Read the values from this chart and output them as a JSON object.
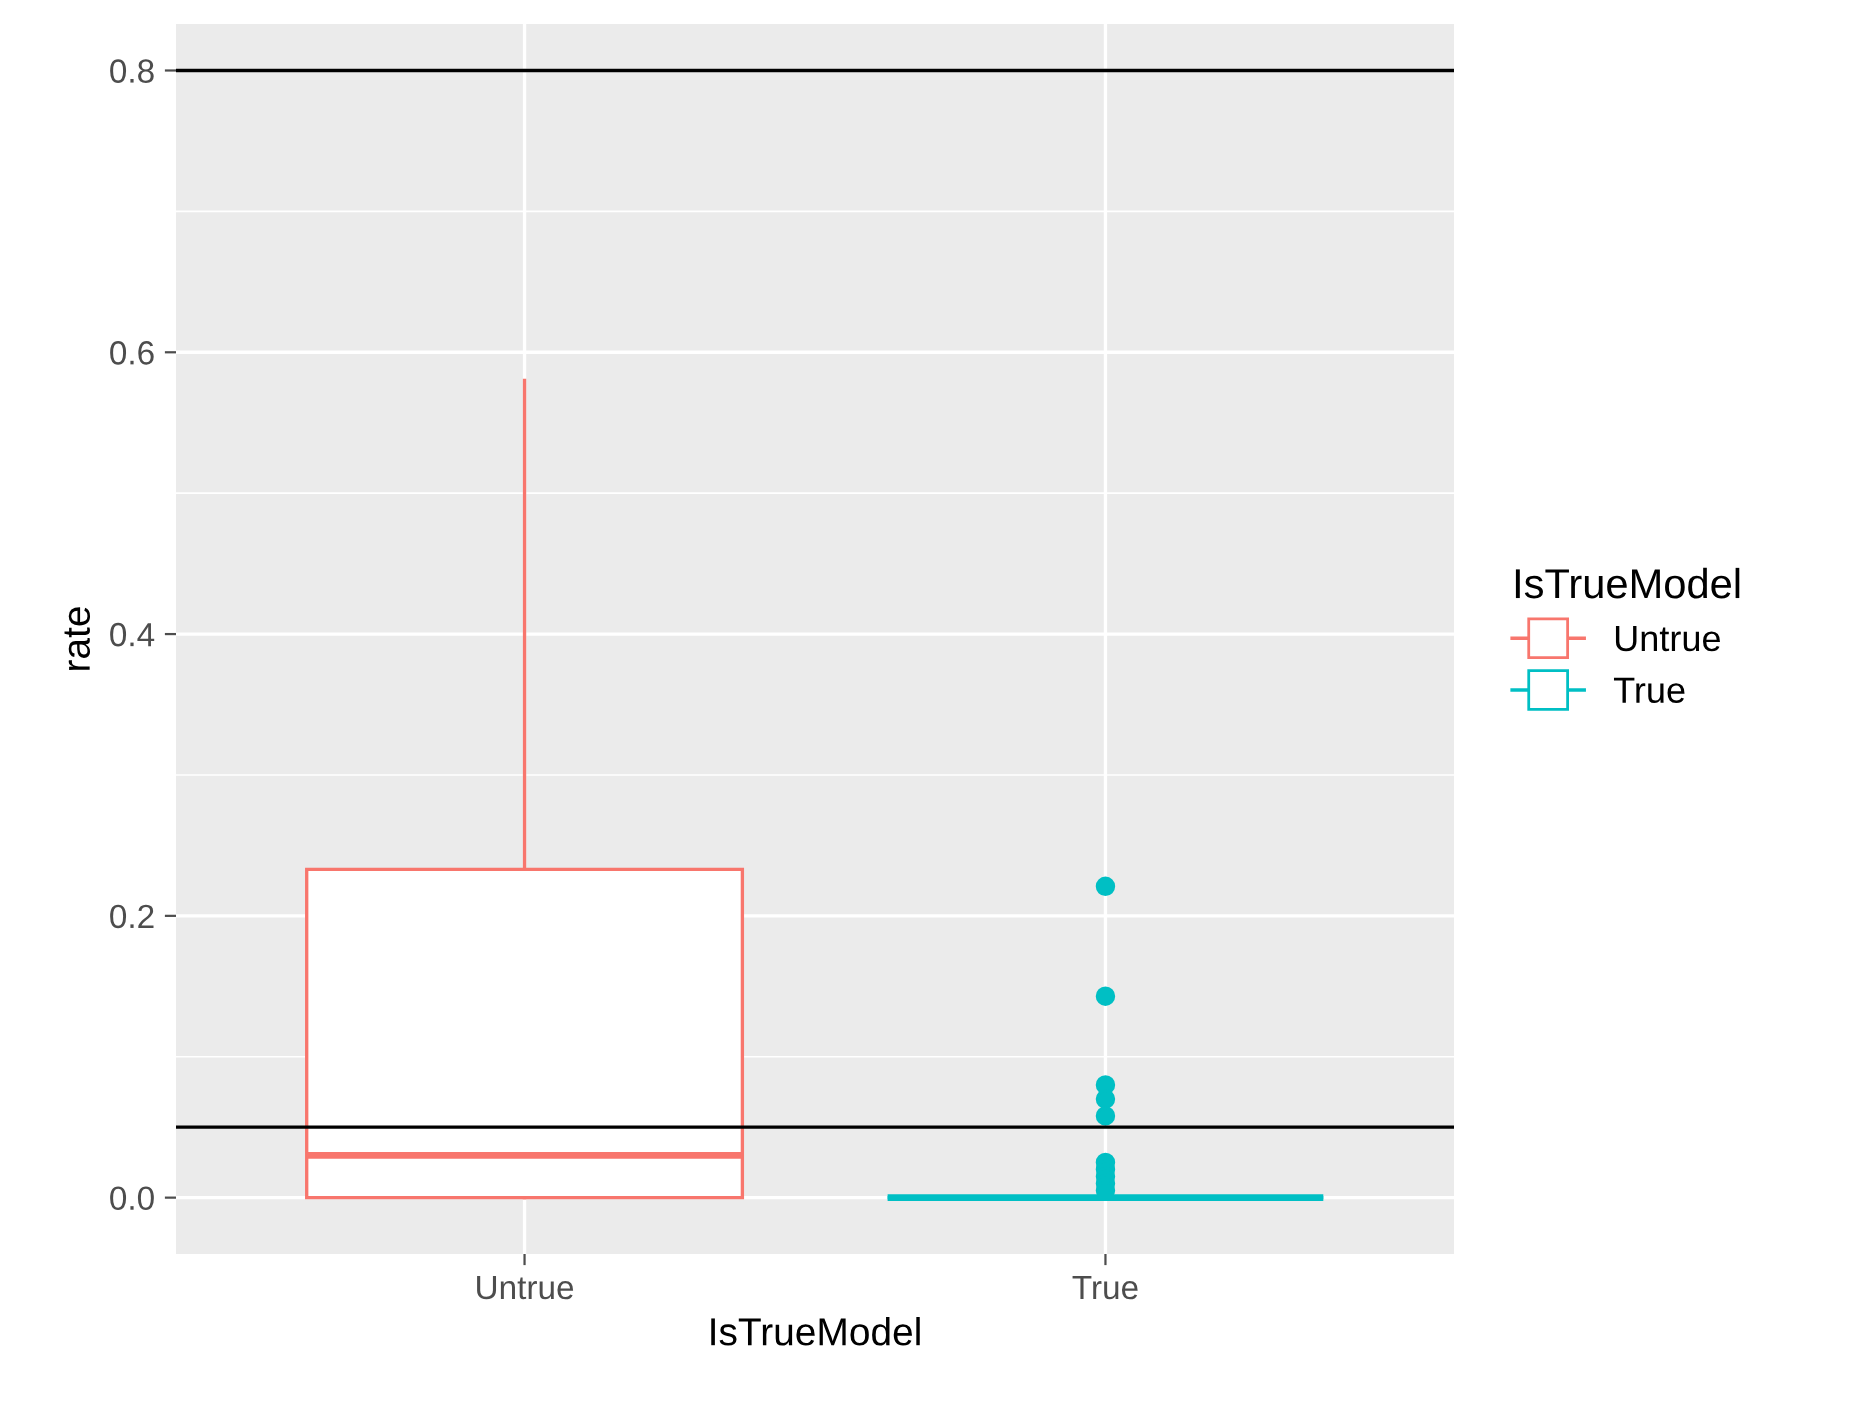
{
  "chart_data": {
    "type": "box",
    "xlabel": "IsTrueModel",
    "ylabel": "rate",
    "legend_title": "IsTrueModel",
    "categories": [
      "Untrue",
      "True"
    ],
    "series": [
      {
        "name": "Untrue",
        "color": "#f8766d",
        "boxes": [
          {
            "low": 0,
            "q1": 0,
            "median": 0.03,
            "q3": 0.233,
            "high": 0.58
          },
          null
        ]
      },
      {
        "name": "True",
        "color": "#00bfc4",
        "boxes": [
          null,
          {
            "low": 0,
            "q1": 0,
            "median": 0,
            "q3": 0,
            "high": 0,
            "outliers": [
              0.221,
              0.143,
              0.08,
              0.07,
              0.058,
              0.025,
              0.02,
              0.015,
              0.01,
              0.005
            ]
          }
        ]
      }
    ],
    "ylim": [
      -0.04,
      0.833
    ],
    "yticks": [
      {
        "value": 0.0,
        "label": "0.0"
      },
      {
        "value": 0.2,
        "label": "0.2"
      },
      {
        "value": 0.4,
        "label": "0.4"
      },
      {
        "value": 0.6,
        "label": "0.6"
      },
      {
        "value": 0.8,
        "label": "0.8"
      }
    ],
    "ref_lines": [
      {
        "axis": "y",
        "value": 0.8,
        "color": "#000000"
      },
      {
        "axis": "y",
        "value": 0.05,
        "color": "#000000"
      }
    ],
    "grid": true,
    "legend": "right"
  }
}
